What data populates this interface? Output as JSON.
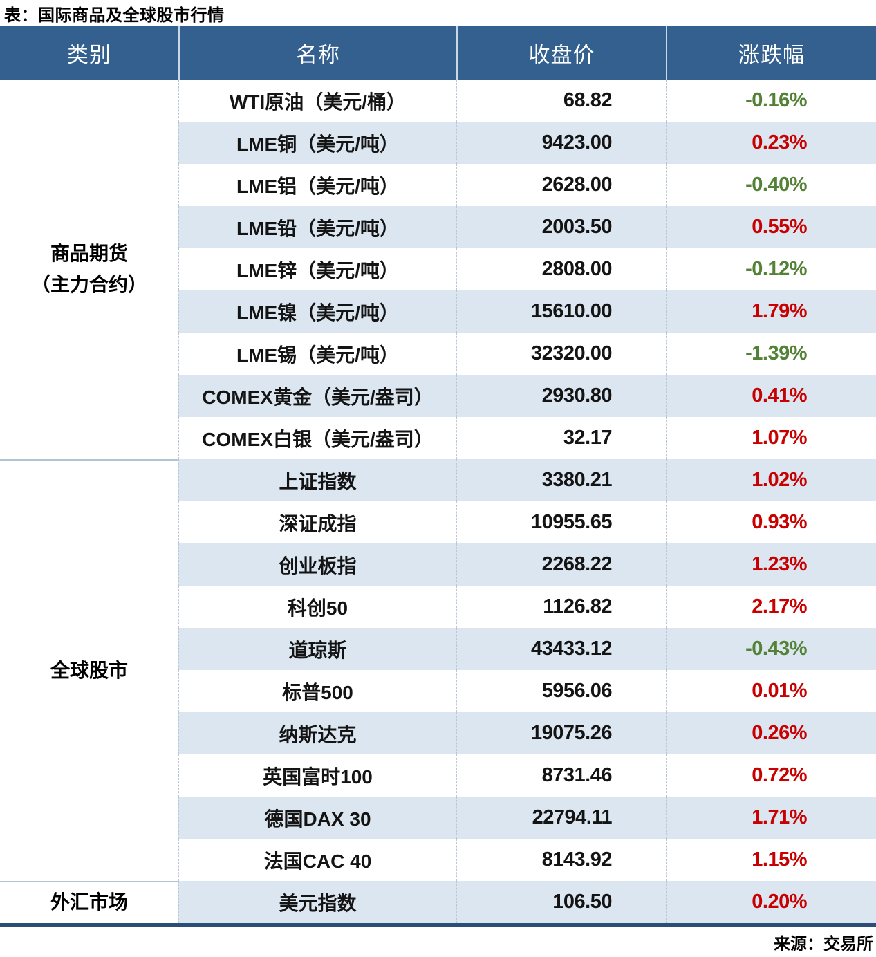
{
  "title": "表：国际商品及全球股市行情",
  "source": "来源：交易所",
  "colors": {
    "header_bg": "#33608f",
    "header_text": "#ffffff",
    "stripe_bg": "#dce6f1",
    "positive_change": "#c80000",
    "negative_change": "#538135",
    "bottom_border": "#2c4d75",
    "section_divider": "#b2c3d6"
  },
  "table": {
    "headers": [
      "类别",
      "名称",
      "收盘价",
      "涨跌幅"
    ],
    "sections": [
      {
        "category": [
          "商品期货",
          "（主力合约）"
        ],
        "rows": [
          {
            "name": "WTI原油（美元/桶）",
            "close": "68.82",
            "change": "-0.16%",
            "dir": "down"
          },
          {
            "name": "LME铜（美元/吨）",
            "close": "9423.00",
            "change": "0.23%",
            "dir": "up"
          },
          {
            "name": "LME铝（美元/吨）",
            "close": "2628.00",
            "change": "-0.40%",
            "dir": "down"
          },
          {
            "name": "LME铅（美元/吨）",
            "close": "2003.50",
            "change": "0.55%",
            "dir": "up"
          },
          {
            "name": "LME锌（美元/吨）",
            "close": "2808.00",
            "change": "-0.12%",
            "dir": "down"
          },
          {
            "name": "LME镍（美元/吨）",
            "close": "15610.00",
            "change": "1.79%",
            "dir": "up"
          },
          {
            "name": "LME锡（美元/吨）",
            "close": "32320.00",
            "change": "-1.39%",
            "dir": "down"
          },
          {
            "name": "COMEX黄金（美元/盎司）",
            "close": "2930.80",
            "change": "0.41%",
            "dir": "up"
          },
          {
            "name": "COMEX白银（美元/盎司）",
            "close": "32.17",
            "change": "1.07%",
            "dir": "up"
          }
        ]
      },
      {
        "category": [
          "全球股市"
        ],
        "rows": [
          {
            "name": "上证指数",
            "close": "3380.21",
            "change": "1.02%",
            "dir": "up"
          },
          {
            "name": "深证成指",
            "close": "10955.65",
            "change": "0.93%",
            "dir": "up"
          },
          {
            "name": "创业板指",
            "close": "2268.22",
            "change": "1.23%",
            "dir": "up"
          },
          {
            "name": "科创50",
            "close": "1126.82",
            "change": "2.17%",
            "dir": "up"
          },
          {
            "name": "道琼斯",
            "close": "43433.12",
            "change": "-0.43%",
            "dir": "down"
          },
          {
            "name": "标普500",
            "close": "5956.06",
            "change": "0.01%",
            "dir": "up"
          },
          {
            "name": "纳斯达克",
            "close": "19075.26",
            "change": "0.26%",
            "dir": "up"
          },
          {
            "name": "英国富时100",
            "close": "8731.46",
            "change": "0.72%",
            "dir": "up"
          },
          {
            "name": "德国DAX 30",
            "close": "22794.11",
            "change": "1.71%",
            "dir": "up"
          },
          {
            "name": "法国CAC 40",
            "close": "8143.92",
            "change": "1.15%",
            "dir": "up"
          }
        ]
      },
      {
        "category": [
          "外汇市场"
        ],
        "rows": [
          {
            "name": "美元指数",
            "close": "106.50",
            "change": "0.20%",
            "dir": "up"
          }
        ]
      }
    ]
  }
}
